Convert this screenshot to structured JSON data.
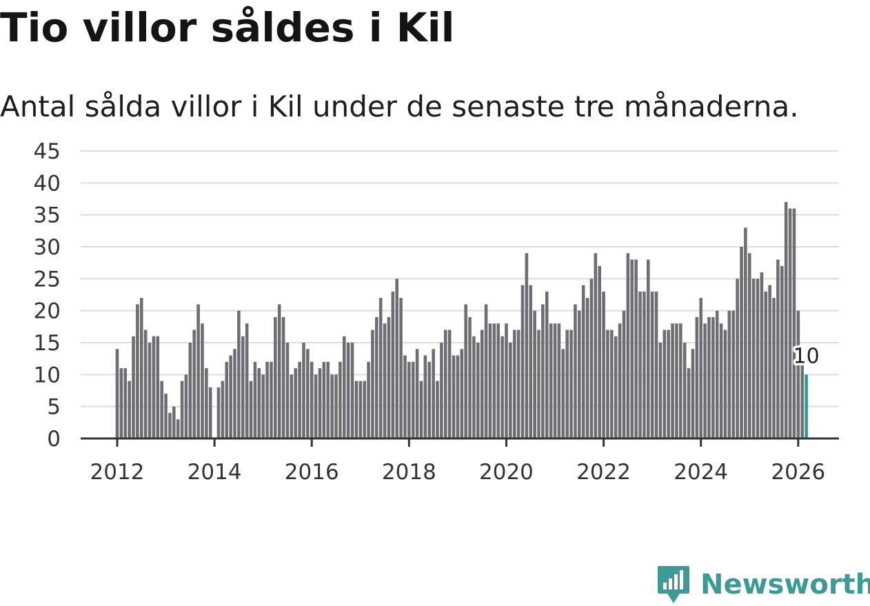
{
  "title": "Tio villor såldes i Kil",
  "subtitle": "Antal sålda villor i Kil under de senaste tre månaderna.",
  "brand": {
    "name": "Newsworthy",
    "color": "#3e9a94"
  },
  "chart_data": {
    "type": "bar",
    "title": "Tio villor såldes i Kil",
    "xlabel": "",
    "ylabel": "",
    "ylim": [
      0,
      45
    ],
    "yticks": [
      "0",
      "5",
      "10",
      "15",
      "20",
      "25",
      "30",
      "35",
      "40",
      "45"
    ],
    "xticks": [
      "2012",
      "2014",
      "2016",
      "2018",
      "2020",
      "2022",
      "2024",
      "2026"
    ],
    "x_start": "2012-01",
    "grid": true,
    "bar_color": "#6e6d73",
    "highlight_color": "#1e9e93",
    "highlight_label": "10",
    "values": [
      14,
      11,
      11,
      9,
      16,
      21,
      22,
      17,
      15,
      16,
      16,
      9,
      7,
      4,
      5,
      3,
      9,
      10,
      15,
      17,
      21,
      18,
      11,
      8,
      0,
      8,
      9,
      12,
      13,
      14,
      20,
      16,
      18,
      9,
      12,
      11,
      10,
      12,
      12,
      19,
      21,
      19,
      15,
      10,
      11,
      12,
      15,
      14,
      12,
      10,
      11,
      12,
      12,
      10,
      10,
      12,
      16,
      15,
      15,
      9,
      9,
      9,
      12,
      17,
      19,
      22,
      18,
      19,
      23,
      25,
      22,
      13,
      12,
      12,
      14,
      9,
      13,
      12,
      14,
      9,
      15,
      17,
      17,
      13,
      13,
      14,
      21,
      19,
      16,
      15,
      17,
      21,
      18,
      18,
      18,
      16,
      18,
      15,
      17,
      17,
      24,
      29,
      24,
      20,
      17,
      21,
      23,
      18,
      18,
      18,
      14,
      17,
      17,
      21,
      20,
      24,
      22,
      25,
      29,
      27,
      23,
      17,
      17,
      16,
      18,
      20,
      29,
      28,
      28,
      23,
      23,
      28,
      23,
      23,
      15,
      17,
      17,
      18,
      18,
      18,
      15,
      11,
      14,
      19,
      22,
      18,
      19,
      19,
      20,
      18,
      17,
      20,
      20,
      25,
      30,
      33,
      29,
      25,
      25,
      26,
      23,
      24,
      22,
      28,
      27,
      37,
      36,
      36,
      20,
      12,
      10
    ]
  }
}
